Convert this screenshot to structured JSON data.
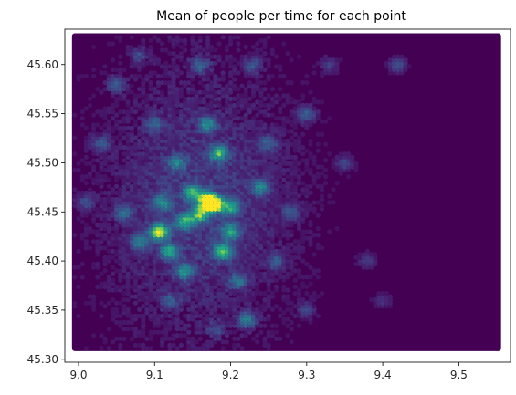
{
  "chart_data": {
    "type": "heatmap",
    "title": "Mean of people per time for each point",
    "xlabel": "",
    "ylabel": "",
    "xlim": [
      8.982,
      9.568
    ],
    "ylim": [
      45.297,
      45.636
    ],
    "x_ticks": [
      9.0,
      9.1,
      9.2,
      9.3,
      9.4,
      9.5
    ],
    "x_tick_labels": [
      "9.0",
      "9.1",
      "9.2",
      "9.3",
      "9.4",
      "9.5"
    ],
    "y_ticks": [
      45.3,
      45.35,
      45.4,
      45.45,
      45.5,
      45.55,
      45.6
    ],
    "y_tick_labels": [
      "45.30",
      "45.35",
      "45.40",
      "45.45",
      "45.50",
      "45.55",
      "45.60"
    ],
    "grid": false,
    "colormap": "viridis",
    "background_color": "#440154",
    "x_range": [
      8.995,
      9.552
    ],
    "y_range": [
      45.311,
      45.629
    ],
    "x_step": 0.005,
    "y_step": 0.0033,
    "hotspots": [
      {
        "x": 9.178,
        "y": 45.458,
        "value": 1.0
      },
      {
        "x": 9.106,
        "y": 45.43,
        "value": 0.95
      },
      {
        "x": 9.17,
        "y": 45.462,
        "value": 0.85
      },
      {
        "x": 9.19,
        "y": 45.41,
        "value": 0.75
      },
      {
        "x": 9.16,
        "y": 45.448,
        "value": 0.7
      },
      {
        "x": 9.14,
        "y": 45.44,
        "value": 0.6
      },
      {
        "x": 9.185,
        "y": 45.51,
        "value": 0.65
      },
      {
        "x": 9.15,
        "y": 45.47,
        "value": 0.6
      },
      {
        "x": 9.12,
        "y": 45.41,
        "value": 0.6
      },
      {
        "x": 9.2,
        "y": 45.455,
        "value": 0.55
      },
      {
        "x": 9.2,
        "y": 45.43,
        "value": 0.55
      },
      {
        "x": 9.14,
        "y": 45.39,
        "value": 0.5
      },
      {
        "x": 9.17,
        "y": 45.54,
        "value": 0.5
      },
      {
        "x": 9.11,
        "y": 45.46,
        "value": 0.45
      },
      {
        "x": 9.222,
        "y": 45.34,
        "value": 0.5
      },
      {
        "x": 9.24,
        "y": 45.475,
        "value": 0.45
      },
      {
        "x": 9.08,
        "y": 45.42,
        "value": 0.4
      },
      {
        "x": 9.13,
        "y": 45.5,
        "value": 0.38
      },
      {
        "x": 9.16,
        "y": 45.6,
        "value": 0.38
      },
      {
        "x": 9.21,
        "y": 45.38,
        "value": 0.38
      },
      {
        "x": 9.06,
        "y": 45.45,
        "value": 0.35
      },
      {
        "x": 9.05,
        "y": 45.58,
        "value": 0.35
      },
      {
        "x": 9.3,
        "y": 45.55,
        "value": 0.35
      },
      {
        "x": 9.1,
        "y": 45.54,
        "value": 0.32
      },
      {
        "x": 9.25,
        "y": 45.52,
        "value": 0.32
      },
      {
        "x": 9.03,
        "y": 45.52,
        "value": 0.3
      },
      {
        "x": 9.23,
        "y": 45.6,
        "value": 0.3
      },
      {
        "x": 9.28,
        "y": 45.45,
        "value": 0.28
      },
      {
        "x": 9.26,
        "y": 45.4,
        "value": 0.28
      },
      {
        "x": 9.12,
        "y": 45.36,
        "value": 0.28
      },
      {
        "x": 9.42,
        "y": 45.6,
        "value": 0.3
      },
      {
        "x": 9.35,
        "y": 45.5,
        "value": 0.25
      },
      {
        "x": 9.01,
        "y": 45.46,
        "value": 0.25
      },
      {
        "x": 9.3,
        "y": 45.35,
        "value": 0.22
      },
      {
        "x": 9.38,
        "y": 45.4,
        "value": 0.2
      },
      {
        "x": 9.18,
        "y": 45.33,
        "value": 0.25
      },
      {
        "x": 9.08,
        "y": 45.61,
        "value": 0.25
      },
      {
        "x": 9.33,
        "y": 45.6,
        "value": 0.22
      },
      {
        "x": 9.4,
        "y": 45.36,
        "value": 0.18
      }
    ]
  }
}
